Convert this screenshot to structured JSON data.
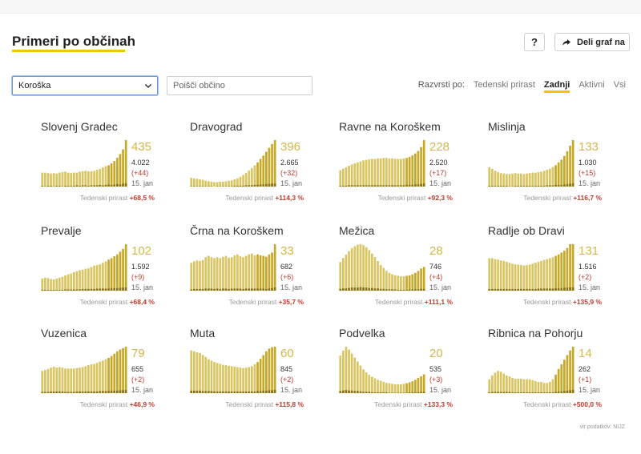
{
  "header": {
    "title": "Primeri po občinah",
    "help_label": "?",
    "share_label": "Deli graf na"
  },
  "controls": {
    "region_selected": "Koroška",
    "search_placeholder": "Poišči občino",
    "sort_label": "Razvrsti po:",
    "sort_options": [
      {
        "label": "Tedenski prirast",
        "active": false
      },
      {
        "label": "Zadnji",
        "active": true
      },
      {
        "label": "Aktivni",
        "active": false
      },
      {
        "label": "Vsi",
        "active": false
      }
    ]
  },
  "colors": {
    "bar": "#d9c663",
    "bar_recent": "#c7a92a",
    "bar_daily": "#8b7410",
    "accent_underline": "#f5c400",
    "negative": "#c0392b"
  },
  "growth_label": "Tedenski prirast",
  "municipalities": [
    {
      "name": "Slovenj Gradec",
      "active": "435",
      "total": "4.022",
      "delta": "(+44)",
      "date": "15. jan",
      "growth": "+68,5 %",
      "series": [
        30,
        30,
        29,
        28,
        29,
        28,
        30,
        31,
        32,
        30,
        29,
        30,
        30,
        32,
        33,
        34,
        33,
        33,
        34,
        36,
        38,
        41,
        44,
        46,
        50,
        55,
        62,
        70,
        80,
        100
      ],
      "daily": [
        2,
        1,
        2,
        2,
        1,
        2,
        2,
        1,
        2,
        2,
        2,
        2,
        3,
        2,
        3,
        3,
        2,
        3,
        3,
        3,
        4,
        3,
        4,
        5,
        4,
        5,
        6,
        5,
        7,
        8
      ]
    },
    {
      "name": "Dravograd",
      "active": "396",
      "total": "2.665",
      "delta": "(+32)",
      "date": "15. jan",
      "growth": "+114,3 %",
      "series": [
        18,
        17,
        16,
        15,
        14,
        12,
        11,
        10,
        9,
        9,
        10,
        10,
        11,
        12,
        13,
        15,
        17,
        20,
        24,
        28,
        33,
        38,
        44,
        50,
        57,
        64,
        72,
        80,
        88,
        96
      ],
      "daily": [
        1,
        1,
        1,
        1,
        1,
        1,
        1,
        1,
        0,
        1,
        1,
        1,
        1,
        1,
        1,
        2,
        2,
        2,
        2,
        3,
        3,
        3,
        4,
        4,
        5,
        5,
        6,
        6,
        7,
        7
      ]
    },
    {
      "name": "Ravne na Koroškem",
      "active": "228",
      "total": "2.520",
      "delta": "(+17)",
      "date": "15. jan",
      "growth": "+92,3 %",
      "series": [
        33,
        36,
        39,
        42,
        45,
        47,
        49,
        51,
        53,
        54,
        55,
        56,
        56,
        57,
        57,
        58,
        58,
        57,
        57,
        56,
        56,
        56,
        57,
        58,
        60,
        63,
        67,
        72,
        80,
        94
      ],
      "daily": [
        2,
        2,
        2,
        3,
        3,
        3,
        3,
        3,
        3,
        3,
        3,
        3,
        3,
        3,
        3,
        3,
        3,
        3,
        3,
        3,
        3,
        3,
        3,
        4,
        4,
        4,
        5,
        5,
        6,
        7
      ]
    },
    {
      "name": "Mislinja",
      "active": "133",
      "total": "1.030",
      "delta": "(+15)",
      "date": "15. jan",
      "growth": "+116,7 %",
      "series": [
        42,
        38,
        34,
        31,
        29,
        28,
        27,
        27,
        28,
        29,
        28,
        28,
        27,
        28,
        29,
        30,
        30,
        31,
        32,
        34,
        36,
        38,
        42,
        46,
        52,
        58,
        66,
        76,
        88,
        100
      ],
      "daily": [
        2,
        2,
        2,
        2,
        2,
        2,
        2,
        1,
        1,
        2,
        2,
        2,
        2,
        2,
        2,
        2,
        2,
        2,
        2,
        2,
        3,
        3,
        3,
        4,
        4,
        4,
        5,
        6,
        7,
        8
      ]
    }
  ],
  "municipalities_row2": [
    {
      "name": "Prevalje",
      "active": "102",
      "total": "1.592",
      "delta": "(+9)",
      "date": "15. jan",
      "growth": "+68,4 %",
      "series": [
        26,
        28,
        27,
        25,
        24,
        26,
        28,
        30,
        33,
        35,
        37,
        40,
        42,
        44,
        45,
        47,
        48,
        51,
        54,
        55,
        57,
        60,
        63,
        67,
        70,
        74,
        78,
        84,
        90,
        100
      ],
      "daily": [
        2,
        2,
        2,
        2,
        2,
        2,
        2,
        2,
        3,
        3,
        3,
        3,
        3,
        3,
        4,
        4,
        4,
        4,
        4,
        5,
        5,
        5,
        5,
        5,
        6,
        6,
        6,
        7,
        7,
        8
      ]
    },
    {
      "name": "Črna na Koroškem",
      "active": "33",
      "total": "682",
      "delta": "(+6)",
      "date": "15. jan",
      "growth": "+35,7 %",
      "series": [
        60,
        63,
        65,
        64,
        66,
        72,
        75,
        72,
        70,
        72,
        70,
        73,
        75,
        71,
        72,
        76,
        78,
        74,
        72,
        75,
        78,
        80,
        76,
        78,
        76,
        75,
        73,
        78,
        82,
        100
      ],
      "daily": [
        3,
        4,
        4,
        4,
        4,
        5,
        5,
        5,
        4,
        5,
        4,
        5,
        5,
        4,
        5,
        5,
        5,
        5,
        4,
        5,
        5,
        5,
        5,
        5,
        5,
        5,
        4,
        5,
        6,
        8
      ]
    },
    {
      "name": "Mežica",
      "active": "28",
      "total": "746",
      "delta": "(+4)",
      "date": "15. jan",
      "growth": "+111,1 %",
      "series": [
        58,
        66,
        73,
        80,
        86,
        90,
        93,
        94,
        92,
        88,
        82,
        75,
        68,
        60,
        52,
        46,
        40,
        36,
        33,
        31,
        30,
        29,
        29,
        30,
        31,
        33,
        36,
        40,
        45,
        48
      ],
      "daily": [
        4,
        5,
        5,
        6,
        7,
        7,
        7,
        8,
        7,
        7,
        6,
        6,
        5,
        5,
        4,
        4,
        3,
        3,
        3,
        3,
        2,
        2,
        2,
        2,
        3,
        3,
        3,
        3,
        4,
        4
      ]
    },
    {
      "name": "Radlje ob Dravi",
      "active": "131",
      "total": "1.516",
      "delta": "(+2)",
      "date": "15. jan",
      "growth": "+135,9 %",
      "series": [
        70,
        70,
        68,
        67,
        65,
        64,
        62,
        60,
        58,
        57,
        56,
        55,
        54,
        55,
        56,
        58,
        60,
        62,
        64,
        66,
        68,
        70,
        72,
        75,
        78,
        82,
        86,
        92,
        100,
        100
      ],
      "daily": [
        4,
        4,
        4,
        4,
        4,
        4,
        4,
        4,
        4,
        4,
        4,
        4,
        4,
        4,
        4,
        4,
        4,
        5,
        5,
        5,
        5,
        5,
        5,
        6,
        6,
        6,
        7,
        7,
        8,
        8
      ]
    }
  ],
  "municipalities_row3": [
    {
      "name": "Vuzenica",
      "active": "79",
      "total": "655",
      "delta": "(+2)",
      "date": "15. jan",
      "growth": "+46,9 %",
      "series": [
        48,
        50,
        52,
        55,
        57,
        55,
        56,
        55,
        53,
        53,
        53,
        53,
        54,
        55,
        56,
        58,
        60,
        62,
        63,
        65,
        68,
        70,
        73,
        76,
        80,
        85,
        90,
        94,
        97,
        100
      ],
      "daily": [
        3,
        3,
        3,
        4,
        4,
        4,
        4,
        4,
        3,
        3,
        3,
        3,
        4,
        4,
        4,
        4,
        4,
        4,
        4,
        4,
        5,
        5,
        5,
        5,
        6,
        6,
        6,
        7,
        7,
        8
      ]
    },
    {
      "name": "Muta",
      "active": "60",
      "total": "845",
      "delta": "(+2)",
      "date": "15. jan",
      "growth": "+115,8 %",
      "series": [
        92,
        90,
        88,
        86,
        82,
        78,
        73,
        70,
        67,
        65,
        63,
        61,
        60,
        59,
        58,
        57,
        56,
        55,
        54,
        55,
        56,
        58,
        62,
        67,
        74,
        82,
        90,
        96,
        99,
        100
      ],
      "daily": [
        6,
        6,
        6,
        6,
        5,
        5,
        5,
        5,
        4,
        4,
        4,
        4,
        4,
        4,
        4,
        4,
        4,
        4,
        4,
        4,
        4,
        4,
        4,
        5,
        5,
        6,
        6,
        7,
        7,
        8
      ]
    },
    {
      "name": "Podvelka",
      "active": "20",
      "total": "535",
      "delta": "(+3)",
      "date": "15. jan",
      "growth": "+133,3 %",
      "series": [
        76,
        86,
        94,
        88,
        80,
        72,
        64,
        56,
        48,
        42,
        37,
        33,
        30,
        27,
        25,
        23,
        21,
        20,
        19,
        18,
        18,
        18,
        19,
        20,
        22,
        24,
        27,
        31,
        34,
        38
      ],
      "daily": [
        5,
        6,
        7,
        6,
        6,
        5,
        5,
        4,
        3,
        3,
        3,
        2,
        2,
        2,
        2,
        2,
        2,
        1,
        1,
        1,
        1,
        1,
        1,
        1,
        2,
        2,
        2,
        2,
        3,
        3
      ]
    },
    {
      "name": "Ribnica na Pohorju",
      "active": "14",
      "total": "262",
      "delta": "(+1)",
      "date": "15. jan",
      "growth": "+500,0 %",
      "series": [
        30,
        38,
        44,
        48,
        46,
        42,
        38,
        36,
        33,
        31,
        31,
        31,
        30,
        30,
        30,
        28,
        26,
        24,
        24,
        22,
        22,
        24,
        30,
        40,
        52,
        62,
        72,
        82,
        92,
        100
      ],
      "daily": [
        2,
        3,
        3,
        3,
        3,
        3,
        3,
        3,
        2,
        2,
        2,
        2,
        2,
        2,
        2,
        2,
        2,
        2,
        2,
        2,
        2,
        2,
        2,
        3,
        4,
        4,
        5,
        6,
        7,
        8
      ]
    }
  ],
  "source": "vir podatkov: NIJZ"
}
